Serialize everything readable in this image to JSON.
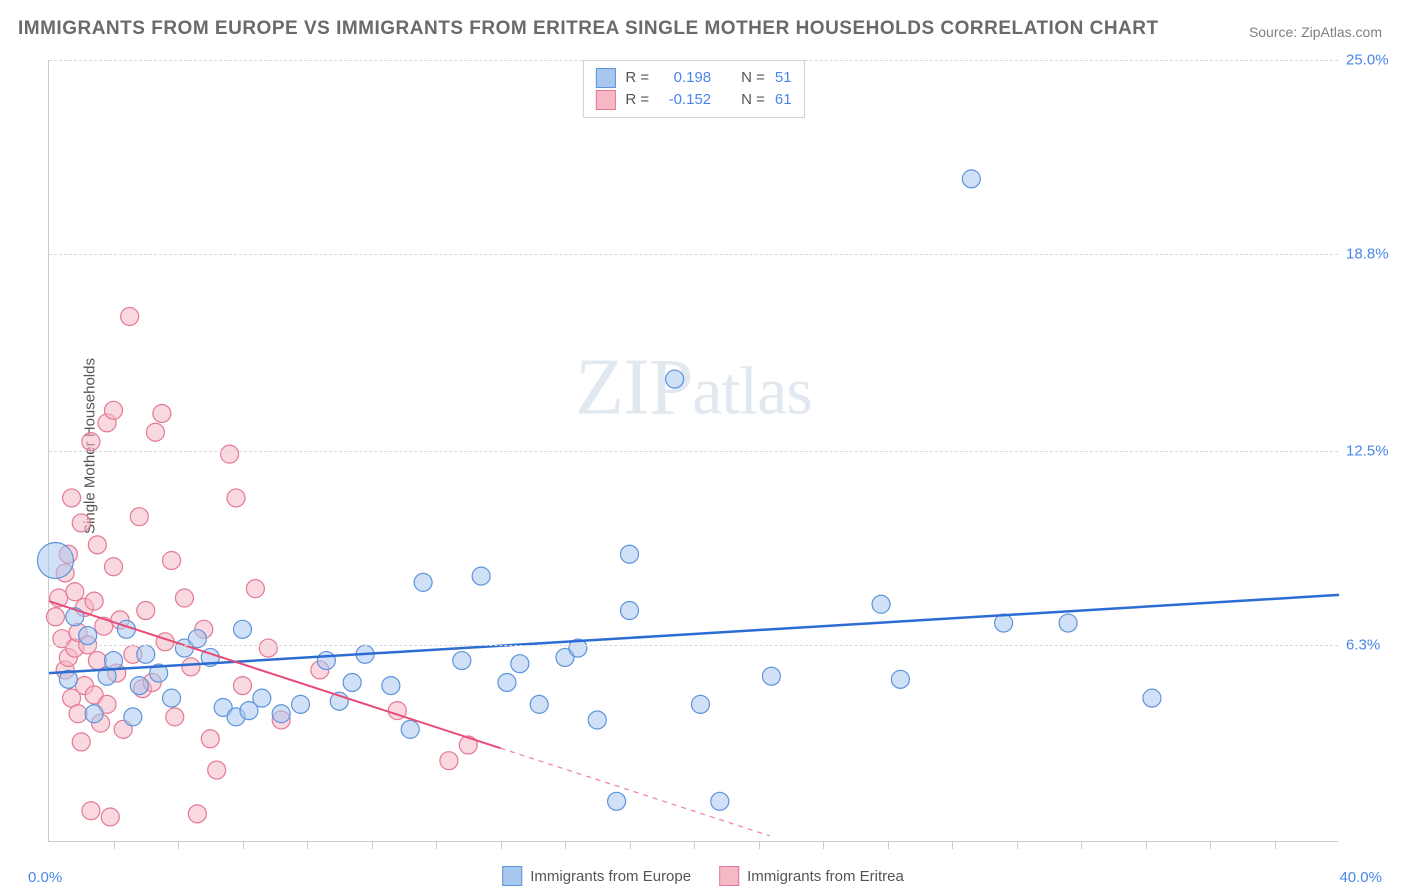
{
  "title": "IMMIGRANTS FROM EUROPE VS IMMIGRANTS FROM ERITREA SINGLE MOTHER HOUSEHOLDS CORRELATION CHART",
  "source_label": "Source: ZipAtlas.com",
  "watermark_bold": "ZIP",
  "watermark_light": "atlas",
  "y_axis_title": "Single Mother Households",
  "chart": {
    "type": "scatter",
    "xlim": [
      0.0,
      40.0
    ],
    "ylim": [
      0.0,
      25.0
    ],
    "x_min_label": "0.0%",
    "x_max_label": "40.0%",
    "y_ticks": [
      6.3,
      12.5,
      18.8,
      25.0
    ],
    "y_tick_labels": [
      "6.3%",
      "12.5%",
      "18.8%",
      "25.0%"
    ],
    "x_ticks_minor": [
      2,
      4,
      6,
      8,
      10,
      12,
      14,
      16,
      18,
      20,
      22,
      24,
      26,
      28,
      30,
      32,
      34,
      36,
      38
    ],
    "grid_color": "#d8d8d8",
    "axis_color": "#cccccc",
    "background_color": "#ffffff",
    "series": [
      {
        "name": "Immigrants from Europe",
        "fill_color": "#a9c6ef",
        "stroke_color": "#5d94db",
        "fill_opacity": 0.55,
        "marker_radius": 9,
        "trend_color": "#2d6cd2",
        "trend_width": 2.5,
        "trend_p1": [
          0.0,
          5.4
        ],
        "trend_p2": [
          40.0,
          7.9
        ],
        "R_label": "R =",
        "R_value": "0.198",
        "N_label": "N =",
        "N_value": "51",
        "points": [
          [
            0.2,
            9.0,
            18
          ],
          [
            0.8,
            7.2,
            9
          ],
          [
            1.2,
            6.6,
            9
          ],
          [
            1.8,
            5.3,
            9
          ],
          [
            2.0,
            5.8,
            9
          ],
          [
            2.4,
            6.8,
            9
          ],
          [
            2.6,
            4.0,
            9
          ],
          [
            2.8,
            5.0,
            9
          ],
          [
            3.0,
            6.0,
            9
          ],
          [
            3.4,
            5.4,
            9
          ],
          [
            3.8,
            4.6,
            9
          ],
          [
            4.2,
            6.2,
            9
          ],
          [
            5.0,
            5.9,
            9
          ],
          [
            5.4,
            4.3,
            9
          ],
          [
            5.8,
            4.0,
            9
          ],
          [
            6.2,
            4.2,
            9
          ],
          [
            6.6,
            4.6,
            9
          ],
          [
            7.2,
            4.1,
            9
          ],
          [
            7.8,
            4.4,
            9
          ],
          [
            8.6,
            5.8,
            9
          ],
          [
            9.0,
            4.5,
            9
          ],
          [
            9.4,
            5.1,
            9
          ],
          [
            9.8,
            6.0,
            9
          ],
          [
            10.6,
            5.0,
            9
          ],
          [
            11.2,
            3.6,
            9
          ],
          [
            11.6,
            8.3,
            9
          ],
          [
            12.8,
            5.8,
            9
          ],
          [
            13.4,
            8.5,
            9
          ],
          [
            14.2,
            5.1,
            9
          ],
          [
            14.6,
            5.7,
            9
          ],
          [
            15.2,
            4.4,
            9
          ],
          [
            16.0,
            5.9,
            9
          ],
          [
            16.4,
            6.2,
            9
          ],
          [
            17.0,
            3.9,
            9
          ],
          [
            17.6,
            1.3,
            9
          ],
          [
            18.0,
            7.4,
            9
          ],
          [
            18.0,
            9.2,
            9
          ],
          [
            19.4,
            14.8,
            9
          ],
          [
            20.2,
            4.4,
            9
          ],
          [
            20.8,
            1.3,
            9
          ],
          [
            22.4,
            5.3,
            9
          ],
          [
            25.8,
            7.6,
            9
          ],
          [
            26.4,
            5.2,
            9
          ],
          [
            28.6,
            21.2,
            9
          ],
          [
            29.6,
            7.0,
            9
          ],
          [
            31.6,
            7.0,
            9
          ],
          [
            34.2,
            4.6,
            9
          ],
          [
            0.6,
            5.2,
            9
          ],
          [
            1.4,
            4.1,
            9
          ],
          [
            4.6,
            6.5,
            9
          ],
          [
            6.0,
            6.8,
            9
          ]
        ]
      },
      {
        "name": "Immigrants from Eritrea",
        "fill_color": "#f6b8c4",
        "stroke_color": "#e37a93",
        "fill_opacity": 0.55,
        "marker_radius": 9,
        "trend_color": "#e94b77",
        "trend_width": 2,
        "trend_p1": [
          0.0,
          7.7
        ],
        "trend_p2": [
          14.0,
          3.0
        ],
        "trend_dash_p1": [
          14.0,
          3.0
        ],
        "trend_dash_p2": [
          30.0,
          -2.3
        ],
        "R_label": "R =",
        "R_value": "-0.152",
        "N_label": "N =",
        "N_value": "61",
        "points": [
          [
            0.2,
            7.2,
            9
          ],
          [
            0.3,
            7.8,
            9
          ],
          [
            0.4,
            6.5,
            9
          ],
          [
            0.5,
            8.6,
            9
          ],
          [
            0.5,
            5.5,
            9
          ],
          [
            0.6,
            9.2,
            9
          ],
          [
            0.6,
            5.9,
            9
          ],
          [
            0.7,
            11.0,
            9
          ],
          [
            0.7,
            4.6,
            9
          ],
          [
            0.8,
            6.2,
            9
          ],
          [
            0.8,
            8.0,
            9
          ],
          [
            0.9,
            6.7,
            9
          ],
          [
            0.9,
            4.1,
            9
          ],
          [
            1.0,
            10.2,
            9
          ],
          [
            1.0,
            3.2,
            9
          ],
          [
            1.1,
            7.5,
            9
          ],
          [
            1.1,
            5.0,
            9
          ],
          [
            1.2,
            6.3,
            9
          ],
          [
            1.3,
            12.8,
            9
          ],
          [
            1.3,
            1.0,
            9
          ],
          [
            1.4,
            4.7,
            9
          ],
          [
            1.4,
            7.7,
            9
          ],
          [
            1.5,
            9.5,
            9
          ],
          [
            1.5,
            5.8,
            9
          ],
          [
            1.6,
            3.8,
            9
          ],
          [
            1.7,
            6.9,
            9
          ],
          [
            1.8,
            13.4,
            9
          ],
          [
            1.8,
            4.4,
            9
          ],
          [
            1.9,
            0.8,
            9
          ],
          [
            2.0,
            8.8,
            9
          ],
          [
            2.0,
            13.8,
            9
          ],
          [
            2.1,
            5.4,
            9
          ],
          [
            2.2,
            7.1,
            9
          ],
          [
            2.3,
            3.6,
            9
          ],
          [
            2.5,
            16.8,
            9
          ],
          [
            2.6,
            6.0,
            9
          ],
          [
            2.8,
            10.4,
            9
          ],
          [
            2.9,
            4.9,
            9
          ],
          [
            3.0,
            7.4,
            9
          ],
          [
            3.2,
            5.1,
            9
          ],
          [
            3.3,
            13.1,
            9
          ],
          [
            3.5,
            13.7,
            9
          ],
          [
            3.6,
            6.4,
            9
          ],
          [
            3.8,
            9.0,
            9
          ],
          [
            3.9,
            4.0,
            9
          ],
          [
            4.2,
            7.8,
            9
          ],
          [
            4.4,
            5.6,
            9
          ],
          [
            4.6,
            0.9,
            9
          ],
          [
            4.8,
            6.8,
            9
          ],
          [
            5.0,
            3.3,
            9
          ],
          [
            5.2,
            2.3,
            9
          ],
          [
            5.6,
            12.4,
            9
          ],
          [
            5.8,
            11.0,
            9
          ],
          [
            6.0,
            5.0,
            9
          ],
          [
            6.4,
            8.1,
            9
          ],
          [
            6.8,
            6.2,
            9
          ],
          [
            7.2,
            3.9,
            9
          ],
          [
            8.4,
            5.5,
            9
          ],
          [
            10.8,
            4.2,
            9
          ],
          [
            12.4,
            2.6,
            9
          ],
          [
            13.0,
            3.1,
            9
          ]
        ]
      }
    ]
  },
  "colors": {
    "title": "#6a6a6a",
    "source": "#808080",
    "tick_label": "#4a86e8",
    "axis_title": "#555555",
    "legend_text": "#555555"
  }
}
